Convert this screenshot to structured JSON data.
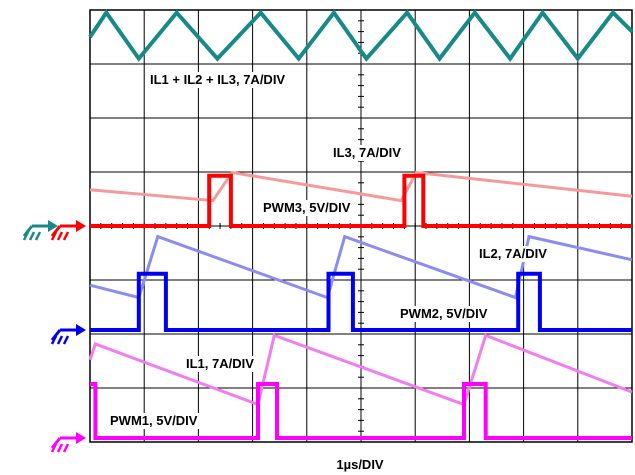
{
  "chart_data": {
    "type": "line",
    "xlabel": "1µs/DIV",
    "grid": true,
    "grid_divisions": {
      "x": 10,
      "y": 8
    },
    "xlim": [
      0,
      10
    ],
    "units": {
      "time_per_div": "1µs"
    },
    "series": [
      {
        "name": "IL1 + IL2 + IL3, 7A/DIV",
        "color": "#158a88",
        "x": [
          0,
          0.3,
          0.9,
          1.6,
          2.35,
          3.15,
          3.85,
          4.5,
          5.1,
          5.85,
          6.45,
          7.1,
          7.75,
          8.35,
          9.0,
          9.65,
          10.0
        ],
        "y": [
          0.5,
          0.95,
          0.1,
          0.95,
          0.1,
          0.95,
          0.1,
          0.95,
          0.1,
          0.95,
          0.1,
          0.95,
          0.1,
          0.95,
          0.1,
          0.95,
          0.6
        ]
      },
      {
        "name": "IL3, 7A/DIV",
        "color": "#f59a9a",
        "x": [
          0,
          2.27,
          2.62,
          5.74,
          6.02,
          10.0
        ],
        "y": [
          0.67,
          0.47,
          0.99,
          0.47,
          0.99,
          0.55
        ]
      },
      {
        "name": "PWM3, 5V/DIV",
        "color": "#ff0000",
        "x": [
          0,
          2.2,
          2.2,
          2.6,
          2.6,
          5.8,
          5.8,
          6.15,
          6.15,
          10.0
        ],
        "y": [
          0,
          0,
          0.93,
          0.93,
          0,
          0,
          0.93,
          0.93,
          0,
          0
        ]
      },
      {
        "name": "IL2, 7A/DIV",
        "color": "#8c8cf0",
        "x": [
          0,
          0.9,
          1.25,
          4.38,
          4.7,
          7.85,
          8.1,
          10.0
        ],
        "y": [
          0.83,
          0.6,
          1.73,
          0.6,
          1.73,
          0.6,
          1.73,
          1.3
        ]
      },
      {
        "name": "PWM2, 5V/DIV",
        "color": "#0000ee",
        "x": [
          0,
          0.9,
          0.9,
          1.4,
          1.4,
          4.4,
          4.4,
          4.85,
          4.85,
          7.9,
          7.9,
          8.3,
          8.3,
          10.0
        ],
        "y": [
          0,
          0,
          1.04,
          1.04,
          0,
          0,
          1.04,
          1.04,
          0,
          0,
          1.04,
          1.04,
          0,
          0
        ]
      },
      {
        "name": "IL1, 7A/DIV",
        "color": "#f07ef0",
        "x": [
          0,
          0.1,
          3.1,
          3.4,
          6.9,
          7.3,
          10.0
        ],
        "y": [
          1.45,
          1.74,
          0.62,
          1.9,
          0.62,
          1.9,
          0.85
        ]
      },
      {
        "name": "PWM1, 5V/DIV",
        "color": "#ff00ff",
        "x": [
          0,
          0.1,
          0.1,
          3.1,
          3.1,
          3.45,
          3.45,
          6.9,
          6.9,
          7.3,
          7.3,
          10.0
        ],
        "y": [
          1.0,
          1.0,
          0,
          0,
          1.0,
          1.0,
          0,
          0,
          1.0,
          1.0,
          0,
          0
        ]
      }
    ],
    "annotations": [
      "IL1 + IL2 + IL3, 7A/DIV",
      "IL3, 7A/DIV",
      "PWM3, 5V/DIV",
      "IL2, 7A/DIV",
      "PWM2, 5V/DIV",
      "IL1, 7A/DIV",
      "PWM1, 5V/DIV"
    ],
    "ground_markers": [
      {
        "channel": "IL1 + IL2 + IL3",
        "color": "#158a88"
      },
      {
        "channel": "PWM3",
        "color": "#ff0000"
      },
      {
        "channel": "PWM2",
        "color": "#0000ee"
      },
      {
        "channel": "PWM1",
        "color": "#ff00ff"
      }
    ]
  }
}
